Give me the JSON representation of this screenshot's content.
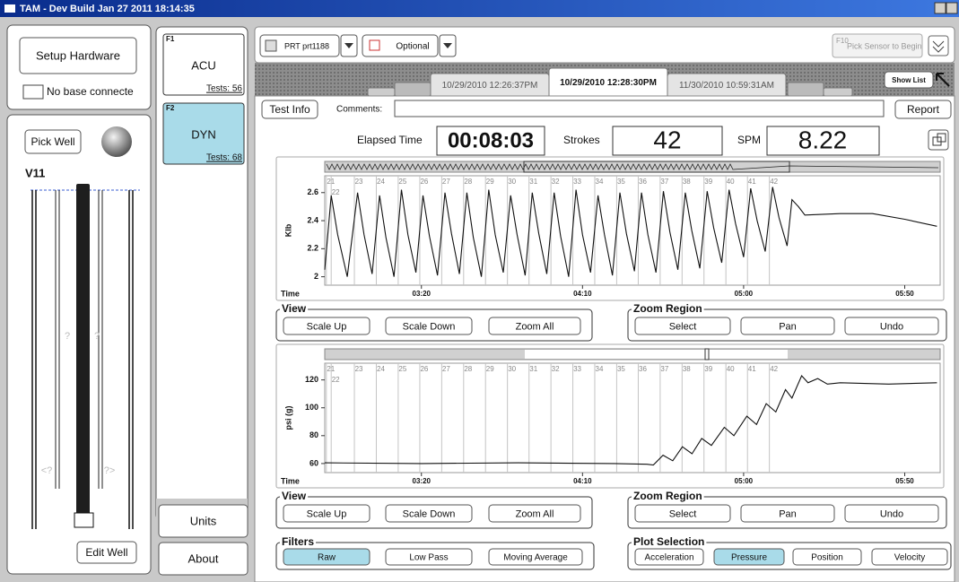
{
  "window": {
    "title": "TAM - Dev Build Jan 27 2011 18:14:35"
  },
  "left_panel": {
    "setup_hardware": "Setup Hardware",
    "status": "No base connecte",
    "pick_well": "Pick Well",
    "well_name": "V11",
    "gauge_marks": [
      "?",
      "?",
      "<?",
      "?>"
    ],
    "edit_well": "Edit Well"
  },
  "tests": [
    {
      "key": "F1",
      "name": "ACU",
      "count": "Tests: 56"
    },
    {
      "key": "F2",
      "name": "DYN",
      "count": "Tests: 68"
    }
  ],
  "units": "Units",
  "about": "About",
  "toolbar": {
    "sensor": "PRT prt1188",
    "optional": "Optional",
    "hotkey": "F10",
    "hint": "Pick Sensor to Begin"
  },
  "tabs": [
    "10/29/2010 12:26:37PM",
    "10/29/2010 12:28:30PM",
    "11/30/2010 10:59:31AM"
  ],
  "show_list": "Show List",
  "test_info": "Test Info",
  "comments": "Comments:",
  "report": "Report",
  "stats": {
    "elapsed_label": "Elapsed Time",
    "elapsed": "00:08:03",
    "strokes_label": "Strokes",
    "strokes": 42,
    "spm_label": "SPM",
    "spm": 8.22
  },
  "strokes": {
    "labels": [
      21,
      22,
      23,
      24,
      25,
      26,
      27,
      28,
      29,
      30,
      31,
      32,
      33,
      34,
      35,
      36,
      37,
      38,
      39,
      40,
      41,
      42
    ],
    "t": [
      170.5,
      172,
      179.2,
      186,
      192.8,
      199.5,
      206.3,
      213.1,
      219.9,
      226.7,
      233.4,
      240.2,
      247,
      253.8,
      260.6,
      267.3,
      274.1,
      280.9,
      287.7,
      294.5,
      301.2,
      308
    ]
  },
  "plots": [
    {
      "y_label": "Klb",
      "x_label": "Time",
      "color": "#111111",
      "xlim": [
        170,
        361
      ],
      "ylim": [
        1.94,
        2.72
      ],
      "xticks": [
        {
          "value": 200,
          "label": "03:20"
        },
        {
          "value": 250,
          "label": "04:10"
        },
        {
          "value": 300,
          "label": "05:00"
        },
        {
          "value": 350,
          "label": "05:50"
        }
      ],
      "yticks": [
        2.6,
        2.4,
        2.2,
        2
      ],
      "x": [
        170,
        172,
        174,
        177,
        180.2,
        182.2,
        184.7,
        187,
        189,
        191.5,
        193.8,
        195.8,
        198.3,
        200.5,
        202.5,
        205,
        207.3,
        209.3,
        211.8,
        214.1,
        216.1,
        218.6,
        220.9,
        222.9,
        225.4,
        227.7,
        229.7,
        232.2,
        234.4,
        236.4,
        238.9,
        241.2,
        243.2,
        245.7,
        248,
        250,
        252.5,
        254.8,
        256.8,
        259.3,
        261.6,
        263.6,
        266.1,
        268.3,
        270.3,
        272.8,
        275.1,
        277.1,
        279.6,
        281.9,
        283.9,
        286.4,
        288.7,
        290.7,
        293.2,
        295.5,
        297.5,
        300,
        302.2,
        304.2,
        306.7,
        309,
        311,
        313.5,
        315,
        317,
        319,
        330,
        340,
        350,
        360
      ],
      "values": [
        2.05,
        2.58,
        2.3,
        2.0,
        2.6,
        2.3,
        2.02,
        2.58,
        2.28,
        2.0,
        2.62,
        2.3,
        2.03,
        2.58,
        2.29,
        2.01,
        2.6,
        2.31,
        2.02,
        2.6,
        2.28,
        2.0,
        2.62,
        2.3,
        2.03,
        2.58,
        2.3,
        2.01,
        2.6,
        2.31,
        2.02,
        2.6,
        2.29,
        2.0,
        2.62,
        2.3,
        2.03,
        2.58,
        2.3,
        2.01,
        2.6,
        2.31,
        2.04,
        2.6,
        2.3,
        2.03,
        2.61,
        2.32,
        2.05,
        2.6,
        2.33,
        2.06,
        2.61,
        2.35,
        2.1,
        2.62,
        2.38,
        2.14,
        2.63,
        2.4,
        2.18,
        2.64,
        2.42,
        2.22,
        2.55,
        2.5,
        2.44,
        2.45,
        2.45,
        2.41,
        2.36
      ],
      "view": {
        "label": "View",
        "buttons": [
          "Scale Up",
          "Scale Down",
          "Zoom All"
        ]
      },
      "zoom": {
        "label": "Zoom Region",
        "buttons": [
          "Select",
          "Pan",
          "Undo"
        ]
      }
    },
    {
      "y_label": "psi (g)",
      "x_label": "Time",
      "color": "#111111",
      "xlim": [
        170,
        361
      ],
      "ylim": [
        53.5,
        132
      ],
      "xticks": [
        {
          "value": 200,
          "label": "03:20"
        },
        {
          "value": 250,
          "label": "04:10"
        },
        {
          "value": 300,
          "label": "05:00"
        },
        {
          "value": 350,
          "label": "05:50"
        }
      ],
      "yticks": [
        120,
        100,
        80,
        60
      ],
      "x": [
        170,
        200,
        230,
        260,
        270,
        272,
        275,
        278,
        281,
        284,
        287,
        290,
        294,
        297,
        301,
        304,
        307,
        310,
        313,
        315,
        318,
        320,
        323,
        326,
        330,
        345,
        360
      ],
      "values": [
        60.5,
        60,
        60.5,
        60,
        59.5,
        59,
        66,
        62,
        72,
        67,
        78,
        73,
        86,
        80,
        94,
        88,
        103,
        97,
        113,
        107,
        123,
        118,
        121,
        117,
        118,
        117,
        118
      ],
      "view": {
        "label": "View",
        "buttons": [
          "Scale Up",
          "Scale Down",
          "Zoom All"
        ]
      },
      "zoom": {
        "label": "Zoom Region",
        "buttons": [
          "Select",
          "Pan",
          "Undo"
        ]
      }
    }
  ],
  "filters": {
    "label": "Filters",
    "buttons": [
      "Raw",
      "Low Pass",
      "Moving Average"
    ],
    "active": 0
  },
  "plot_selection": {
    "label": "Plot Selection",
    "buttons": [
      "Acceleration",
      "Pressure",
      "Position",
      "Velocity"
    ],
    "active": 1
  }
}
